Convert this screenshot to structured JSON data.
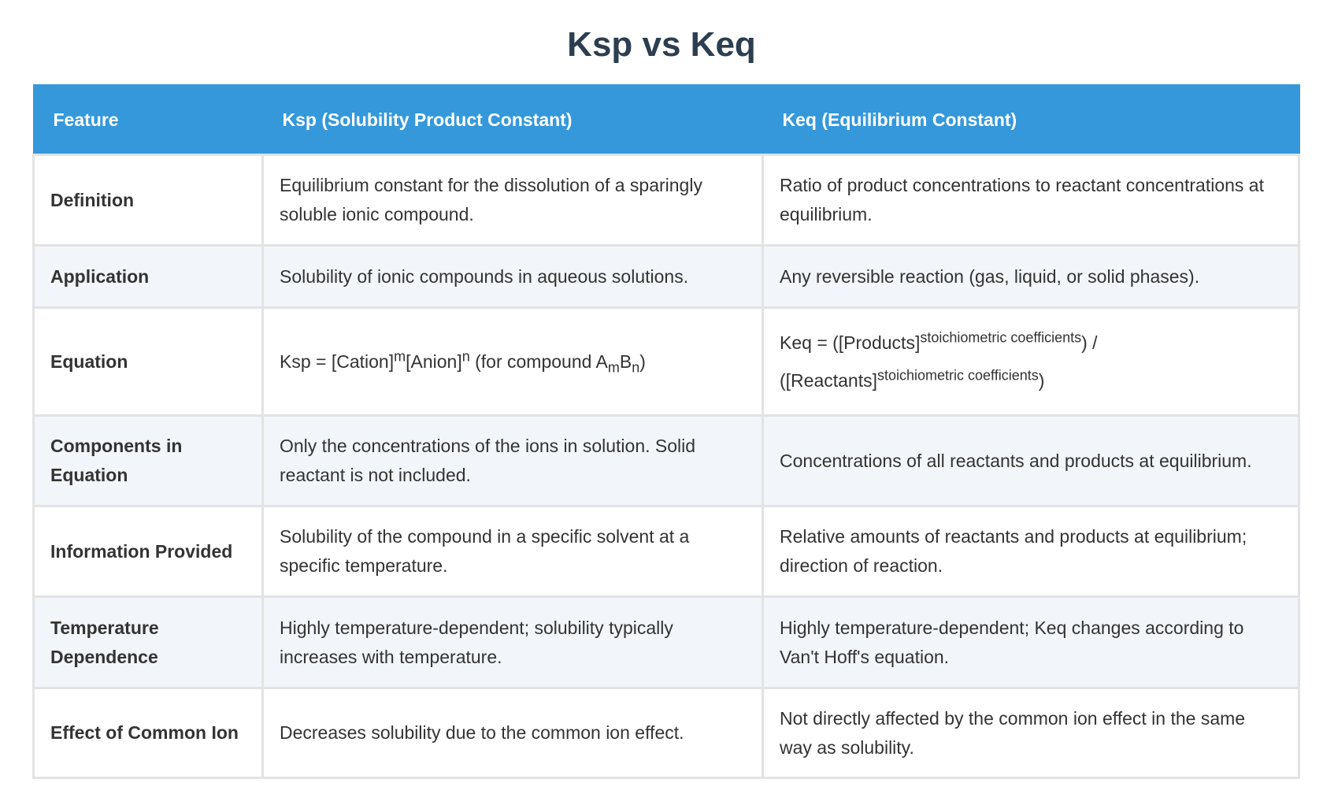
{
  "title": "Ksp vs Keq",
  "table": {
    "headers": [
      "Feature",
      "Ksp (Solubility Product Constant)",
      "Keq (Equilibrium Constant)"
    ],
    "rows": [
      [
        "Definition",
        "Equilibrium constant for the dissolution of a sparingly soluble ionic compound.",
        "Ratio of product concentrations to reactant concentrations at equilibrium."
      ],
      [
        "Application",
        "Solubility of ionic compounds in aqueous solutions.",
        "Any reversible reaction (gas, liquid, or solid phases)."
      ],
      [
        "Equation",
        [
          "Ksp = [Cation]",
          "m",
          "[Anion]",
          "n",
          " (for compound A",
          "m",
          "B",
          "n",
          ")"
        ],
        [
          "Keq = ([Products]",
          "stoichiometric coefficients",
          ") / ([Reactants]",
          "stoichiometric coefficients",
          ")"
        ]
      ],
      [
        "Components in Equation",
        "Only the concentrations of the ions in solution. Solid reactant is not included.",
        "Concentrations of all reactants and products at equilibrium."
      ],
      [
        "Information Provided",
        "Solubility of the compound in a specific solvent at a specific temperature.",
        "Relative amounts of reactants and products at equilibrium; direction of reaction."
      ],
      [
        "Temperature Dependence",
        "Highly temperature-dependent; solubility typically increases with temperature.",
        "Highly temperature-dependent; Keq changes according to Van't Hoff's equation."
      ],
      [
        "Effect of Common Ion",
        "Decreases solubility due to the common ion effect.",
        "Not directly affected by the common ion effect in the same way as solubility."
      ]
    ]
  }
}
